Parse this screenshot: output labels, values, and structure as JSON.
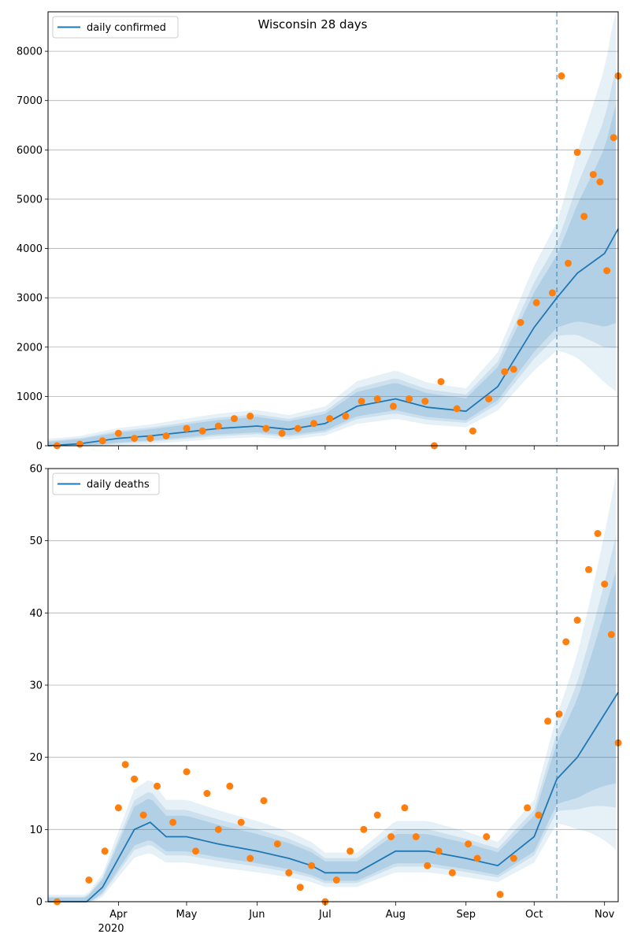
{
  "chart_data": [
    {
      "type": "line",
      "title": "Wisconsin 28 days",
      "legend": {
        "entries": [
          "daily confirmed"
        ],
        "position": "top-left"
      },
      "grid": "y",
      "ylim": [
        0,
        8800
      ],
      "y_ticks": [
        0,
        1000,
        2000,
        3000,
        4000,
        5000,
        6000,
        7000,
        8000
      ],
      "y_tick_labels": [
        "0",
        "1000",
        "2000",
        "3000",
        "4000",
        "5000",
        "6000",
        "7000",
        "8000"
      ],
      "forecast_start": "2020-10-11",
      "series": [
        {
          "name": "daily confirmed",
          "kind": "model-line",
          "color": "#1f77b4",
          "x": [
            "2020-03-01",
            "2020-03-15",
            "2020-04-01",
            "2020-04-15",
            "2020-05-01",
            "2020-05-15",
            "2020-06-01",
            "2020-06-15",
            "2020-07-01",
            "2020-07-15",
            "2020-08-01",
            "2020-08-15",
            "2020-09-01",
            "2020-09-15",
            "2020-10-01",
            "2020-10-11",
            "2020-10-20",
            "2020-11-01",
            "2020-11-07"
          ],
          "y": [
            0,
            40,
            150,
            200,
            280,
            350,
            400,
            330,
            450,
            800,
            950,
            780,
            700,
            1200,
            2400,
            3000,
            3500,
            3900,
            4400
          ]
        },
        {
          "kind": "observed-points",
          "color": "#ff7f0e",
          "x": [
            "2020-03-05",
            "2020-03-15",
            "2020-03-25",
            "2020-04-01",
            "2020-04-08",
            "2020-04-15",
            "2020-04-22",
            "2020-05-01",
            "2020-05-08",
            "2020-05-15",
            "2020-05-22",
            "2020-05-29",
            "2020-06-05",
            "2020-06-12",
            "2020-06-19",
            "2020-06-26",
            "2020-07-03",
            "2020-07-10",
            "2020-07-17",
            "2020-07-24",
            "2020-07-31",
            "2020-08-07",
            "2020-08-14",
            "2020-08-18",
            "2020-08-21",
            "2020-08-28",
            "2020-09-04",
            "2020-09-11",
            "2020-09-18",
            "2020-09-22",
            "2020-09-25",
            "2020-10-02",
            "2020-10-09",
            "2020-10-13",
            "2020-10-16",
            "2020-10-20",
            "2020-10-23",
            "2020-10-27",
            "2020-10-30",
            "2020-11-02",
            "2020-11-05",
            "2020-11-07"
          ],
          "y": [
            0,
            30,
            100,
            250,
            150,
            150,
            200,
            350,
            300,
            400,
            550,
            600,
            350,
            250,
            350,
            450,
            550,
            600,
            900,
            950,
            800,
            950,
            900,
            0,
            1300,
            750,
            300,
            950,
            1500,
            1550,
            2500,
            2900,
            3100,
            7500,
            3700,
            5950,
            4650,
            5500,
            5350,
            3550,
            6250,
            7500
          ]
        }
      ]
    },
    {
      "type": "line",
      "legend": {
        "entries": [
          "daily deaths"
        ],
        "position": "top-left"
      },
      "grid": "y",
      "ylim": [
        0,
        60
      ],
      "y_ticks": [
        0,
        10,
        20,
        30,
        40,
        50,
        60
      ],
      "y_tick_labels": [
        "0",
        "10",
        "20",
        "30",
        "40",
        "50",
        "60"
      ],
      "forecast_start": "2020-10-11",
      "x_ticks": [
        "2020-04-01",
        "2020-05-01",
        "2020-06-01",
        "2020-07-01",
        "2020-08-01",
        "2020-09-01",
        "2020-10-01",
        "2020-11-01"
      ],
      "x_tick_labels": [
        "Apr",
        "May",
        "Jun",
        "Jul",
        "Aug",
        "Sep",
        "Oct",
        "Nov"
      ],
      "x_year_label": "2020",
      "series": [
        {
          "name": "daily deaths",
          "kind": "model-line",
          "color": "#1f77b4",
          "x": [
            "2020-03-01",
            "2020-03-18",
            "2020-03-25",
            "2020-04-01",
            "2020-04-08",
            "2020-04-15",
            "2020-04-22",
            "2020-05-01",
            "2020-05-15",
            "2020-06-01",
            "2020-06-15",
            "2020-06-25",
            "2020-07-01",
            "2020-07-15",
            "2020-08-01",
            "2020-08-15",
            "2020-09-01",
            "2020-09-15",
            "2020-10-01",
            "2020-10-11",
            "2020-10-20",
            "2020-11-01",
            "2020-11-07"
          ],
          "y": [
            0,
            0,
            2,
            6,
            10,
            11,
            9,
            9,
            8,
            7,
            6,
            5,
            4,
            4,
            7,
            7,
            6,
            5,
            9,
            17,
            20,
            26,
            29
          ]
        },
        {
          "kind": "observed-points",
          "color": "#ff7f0e",
          "x": [
            "2020-03-05",
            "2020-03-19",
            "2020-03-26",
            "2020-04-01",
            "2020-04-04",
            "2020-04-08",
            "2020-04-12",
            "2020-04-18",
            "2020-04-25",
            "2020-05-01",
            "2020-05-05",
            "2020-05-10",
            "2020-05-15",
            "2020-05-20",
            "2020-05-25",
            "2020-05-29",
            "2020-06-04",
            "2020-06-10",
            "2020-06-15",
            "2020-06-20",
            "2020-06-25",
            "2020-07-01",
            "2020-07-06",
            "2020-07-12",
            "2020-07-18",
            "2020-07-24",
            "2020-07-30",
            "2020-08-05",
            "2020-08-10",
            "2020-08-15",
            "2020-08-20",
            "2020-08-26",
            "2020-09-02",
            "2020-09-06",
            "2020-09-10",
            "2020-09-16",
            "2020-09-22",
            "2020-09-28",
            "2020-10-03",
            "2020-10-07",
            "2020-10-12",
            "2020-10-15",
            "2020-10-20",
            "2020-10-25",
            "2020-10-29",
            "2020-11-01",
            "2020-11-04",
            "2020-11-07"
          ],
          "y": [
            0,
            3,
            7,
            13,
            19,
            17,
            12,
            16,
            11,
            18,
            7,
            15,
            10,
            16,
            11,
            6,
            14,
            8,
            4,
            2,
            5,
            0,
            3,
            7,
            10,
            12,
            9,
            13,
            9,
            5,
            7,
            4,
            8,
            6,
            9,
            1,
            6,
            13,
            12,
            25,
            26,
            36,
            39,
            46,
            51,
            44,
            37,
            22
          ]
        }
      ]
    }
  ],
  "colors": {
    "model_line": "#1f77b4",
    "observed_points": "#ff7f0e",
    "band": "#1f77b4",
    "grid": "#b0b0b0",
    "forecast_marker": "#1f77b4"
  }
}
